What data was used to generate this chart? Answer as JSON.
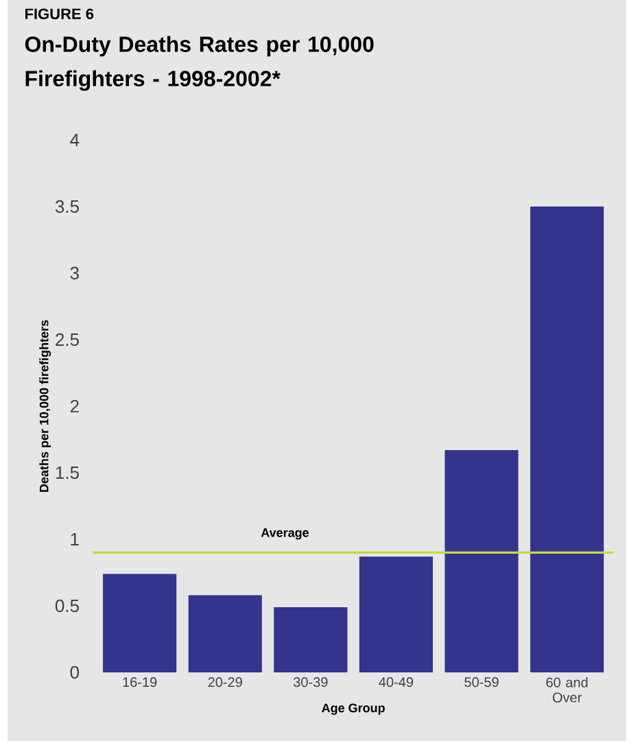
{
  "chart_data": {
    "type": "bar",
    "title": "On-Duty Deaths Rates per 10,000 Firefighters - 1998-2002*",
    "annotations": [
      "FIGURE 6"
    ],
    "xlabel": "Age Group",
    "ylabel": "Deaths per 10,000 firefighters",
    "categories": [
      "16-19",
      "20-29",
      "30-39",
      "40-49",
      "50-59",
      "60 and Over"
    ],
    "values": [
      0.74,
      0.58,
      0.49,
      0.87,
      1.67,
      3.5
    ],
    "color": "#34348c",
    "ylim": [
      0,
      4
    ],
    "yticks": [
      0,
      0.5,
      1,
      1.5,
      2,
      2.5,
      3,
      3.5,
      4
    ],
    "ref_lines": [
      {
        "axis": "y",
        "value": 0.9,
        "label": "Average",
        "color": "#c8d84a"
      }
    ]
  }
}
